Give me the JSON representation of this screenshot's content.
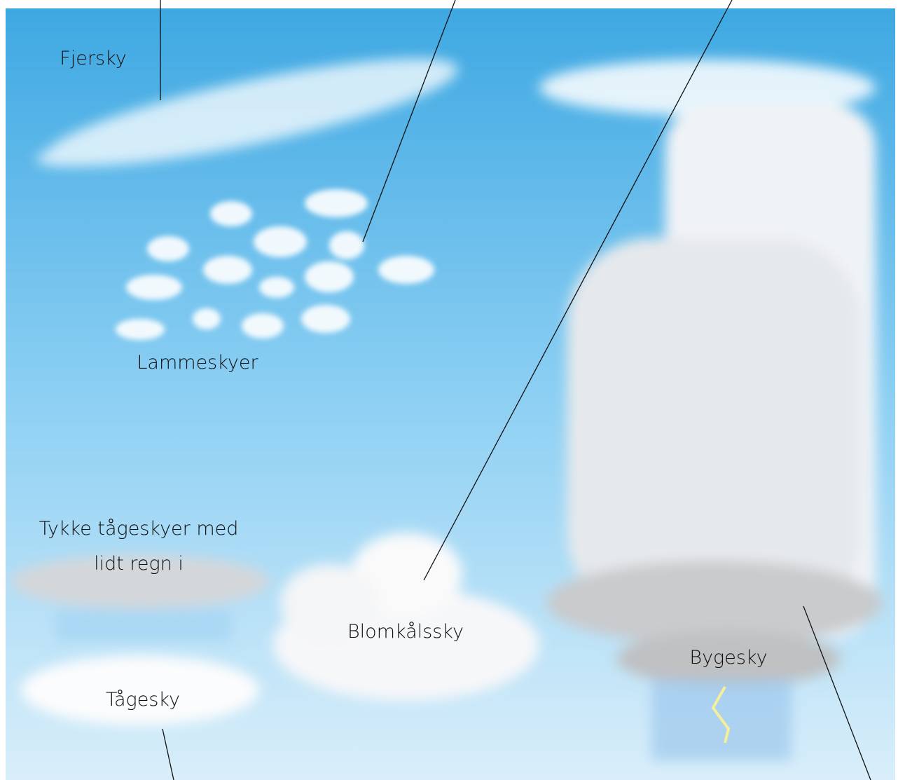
{
  "labels": {
    "cirrus": "Fjersky",
    "altocumulus": "Lammeskyer",
    "nimbostratus": [
      "Tykke tågeskyer med",
      "lidt regn i"
    ],
    "stratus": "Tågesky",
    "cumulus": "Blomkålssky",
    "cumulonimbus": "Bygesky"
  }
}
